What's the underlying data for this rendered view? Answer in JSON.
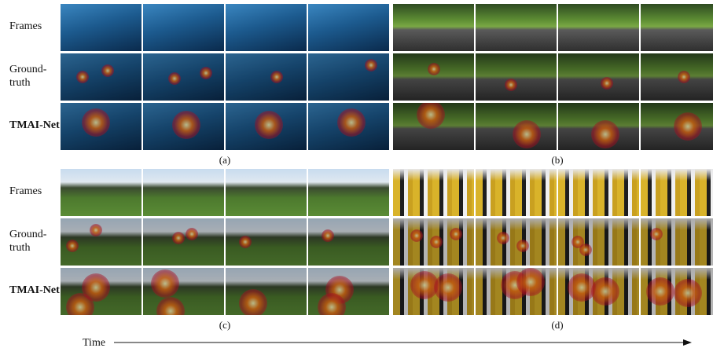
{
  "panels": [
    {
      "label": "(a)",
      "rows": [
        "Frames",
        "Ground-truth",
        "TMAI-Net"
      ]
    },
    {
      "label": "(b)"
    },
    {
      "label": "(c)",
      "rows": [
        "Frames",
        "Ground-truth",
        "TMAI-Net"
      ]
    },
    {
      "label": "(d)"
    }
  ],
  "time_label": "Time"
}
